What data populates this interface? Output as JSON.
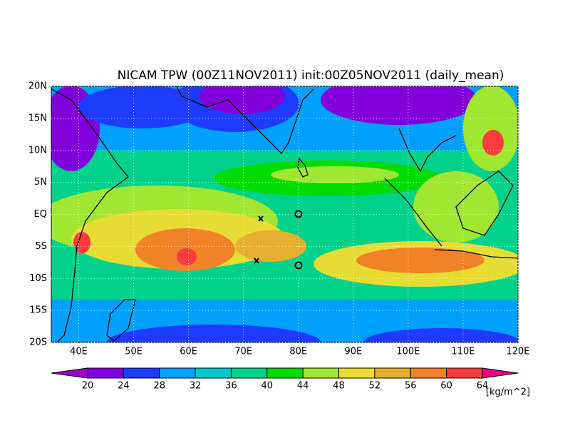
{
  "chart_data": {
    "type": "map",
    "title": "NICAM TPW (00Z11NOV2011) init:00Z05NOV2011 (daily_mean)",
    "xlim": [
      35,
      120
    ],
    "ylim": [
      -20,
      20
    ],
    "xticks": [
      {
        "value": 40,
        "label": "40E"
      },
      {
        "value": 50,
        "label": "50E"
      },
      {
        "value": 60,
        "label": "60E"
      },
      {
        "value": 70,
        "label": "70E"
      },
      {
        "value": 80,
        "label": "80E"
      },
      {
        "value": 90,
        "label": "90E"
      },
      {
        "value": 100,
        "label": "100E"
      },
      {
        "value": 110,
        "label": "110E"
      },
      {
        "value": 120,
        "label": "120E"
      }
    ],
    "yticks": [
      {
        "value": -20,
        "label": "20S"
      },
      {
        "value": -15,
        "label": "15S"
      },
      {
        "value": -10,
        "label": "10S"
      },
      {
        "value": -5,
        "label": "5S"
      },
      {
        "value": 0,
        "label": "EQ"
      },
      {
        "value": 5,
        "label": "5N"
      },
      {
        "value": 10,
        "label": "10N"
      },
      {
        "value": 15,
        "label": "15N"
      },
      {
        "value": 20,
        "label": "20N"
      }
    ],
    "grid": true,
    "colorbar": {
      "levels": [
        20,
        24,
        28,
        32,
        36,
        40,
        44,
        48,
        52,
        56,
        60,
        64
      ],
      "colors": [
        "#a000c8",
        "#8200dc",
        "#1e3cff",
        "#00a0ff",
        "#00c8c8",
        "#00d28c",
        "#00dc00",
        "#a0e632",
        "#e6dc32",
        "#e6af2d",
        "#f08228",
        "#fa3c3c",
        "#f00082"
      ],
      "unit": "[kg/m^2]"
    }
  }
}
